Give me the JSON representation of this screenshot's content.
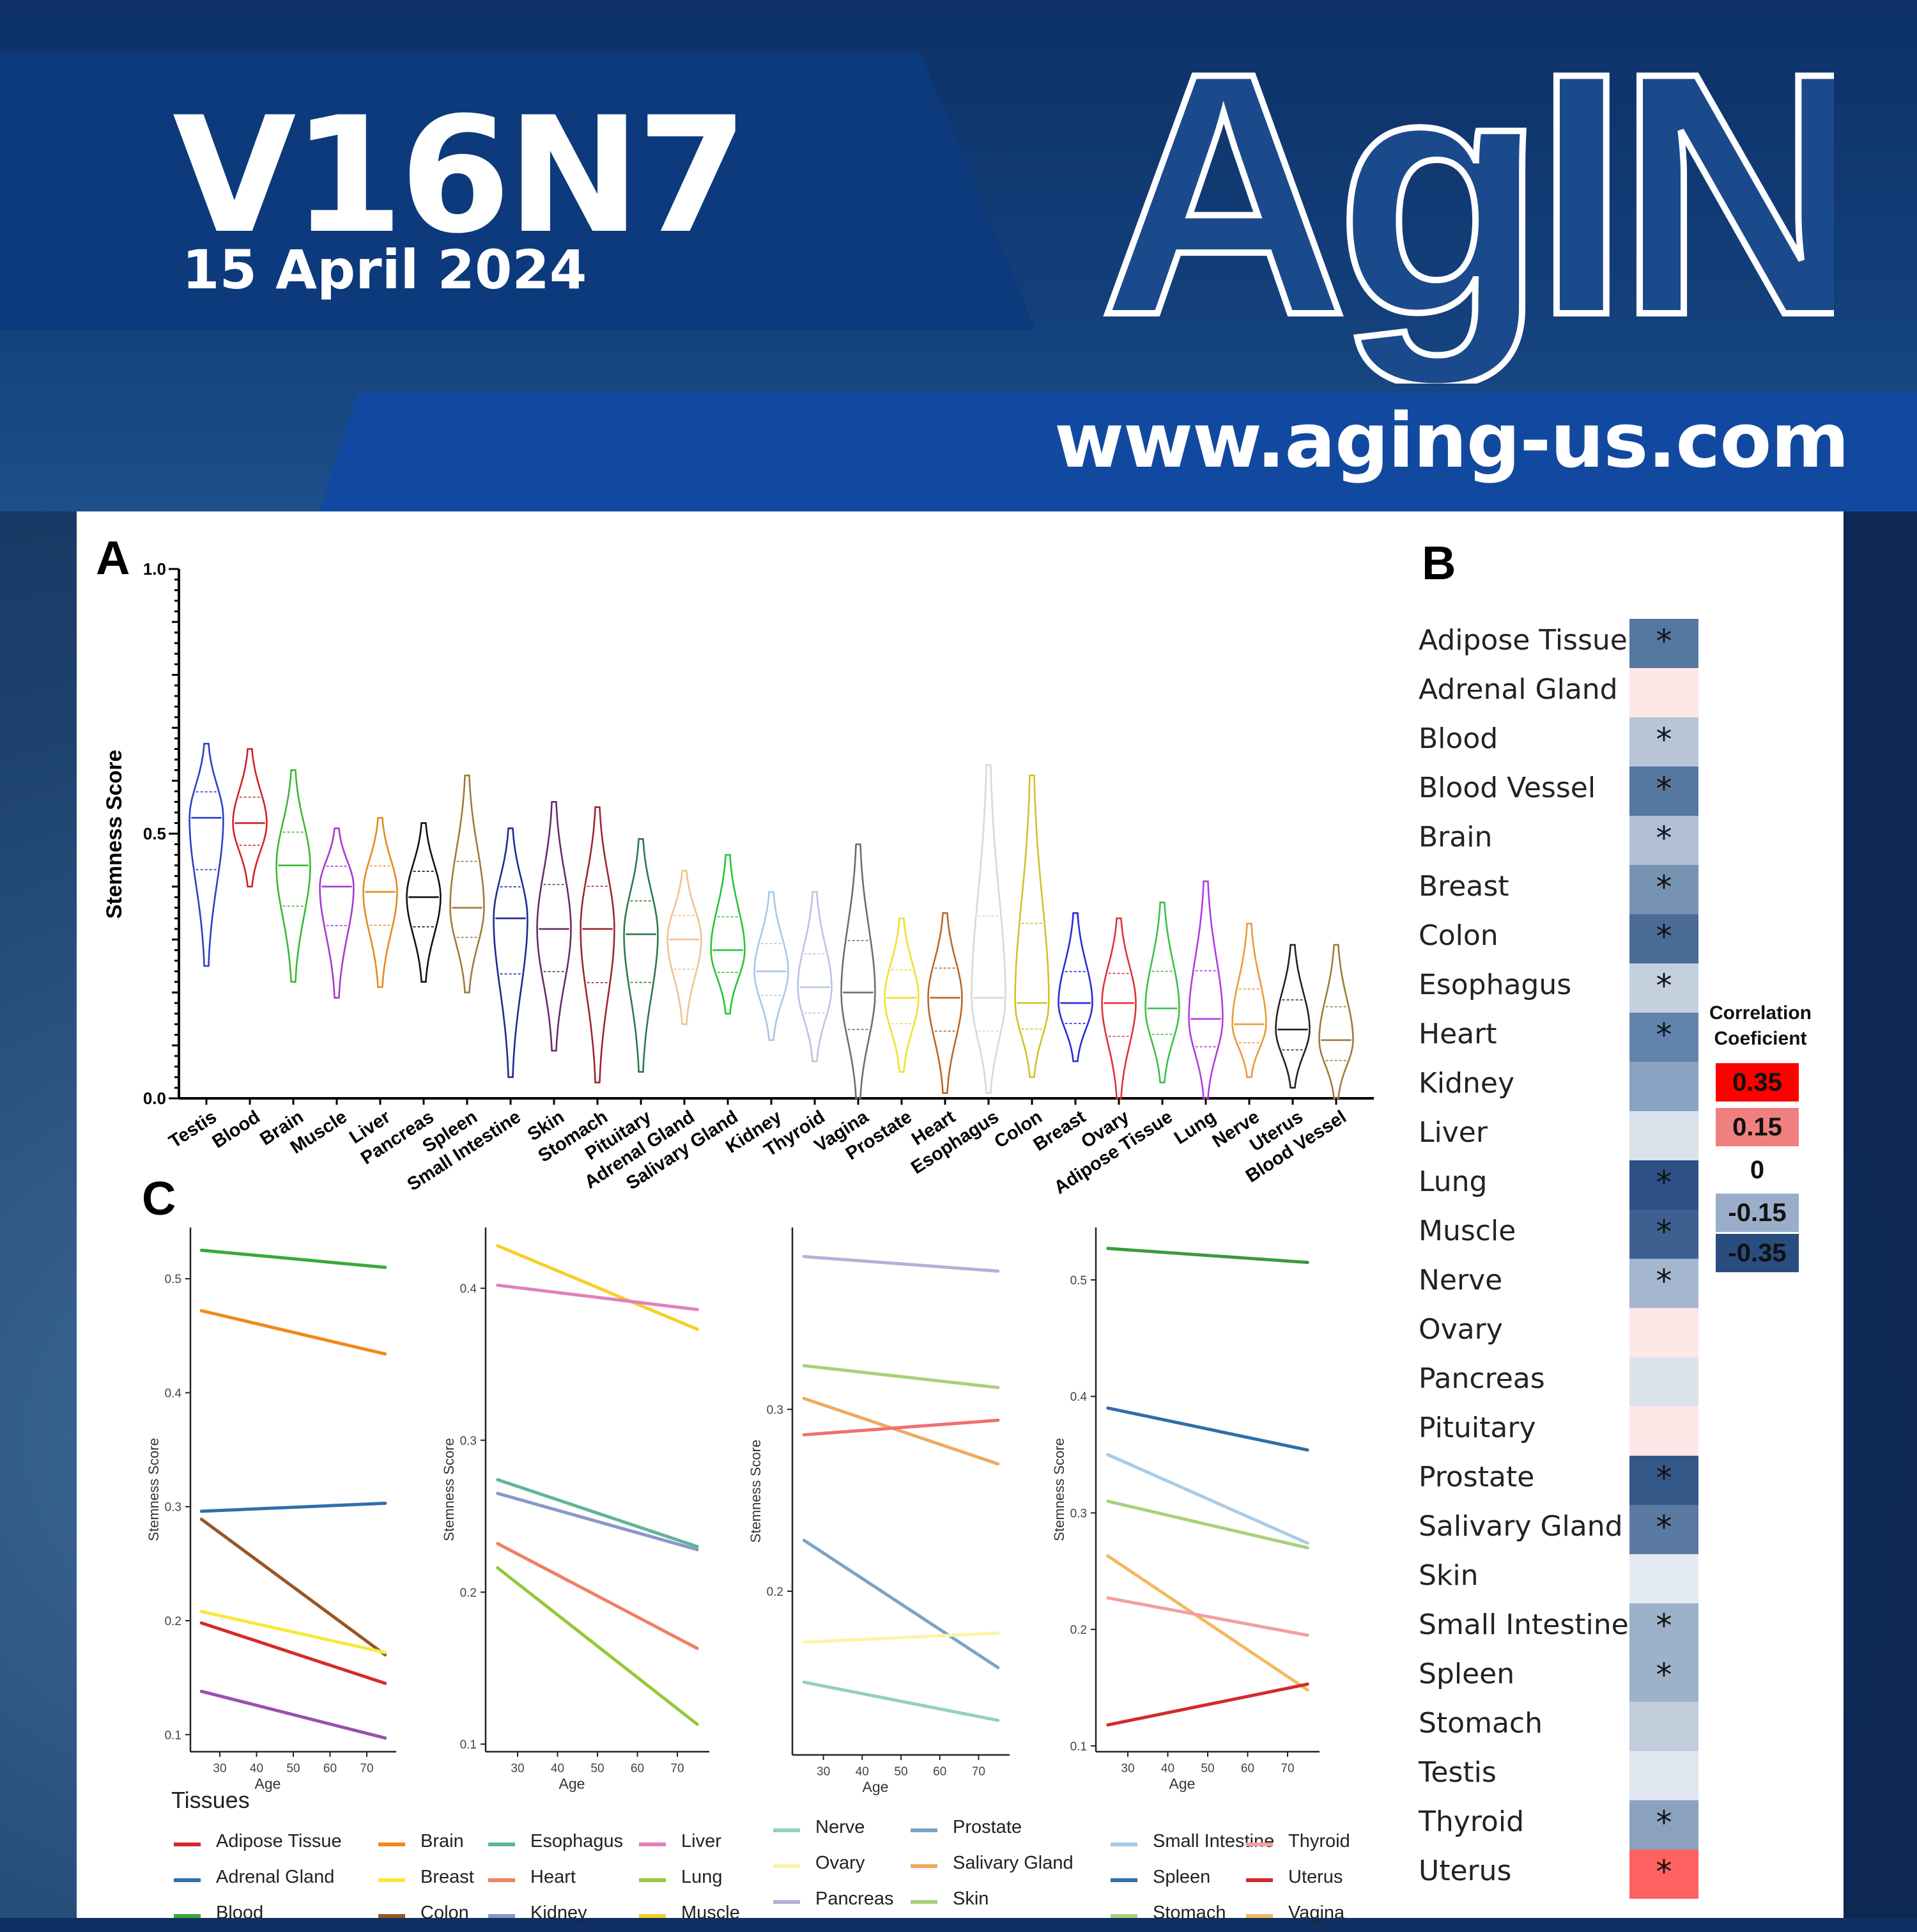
{
  "header": {
    "volume": "V16N7",
    "date": "15 April 2024",
    "logo": "AgING",
    "url": "www.aging-us.com"
  },
  "panels": {
    "a": "A",
    "b": "B",
    "c": "C"
  },
  "violin": {
    "ylabel": "Stemness Score",
    "yticks": [
      "1.0",
      "0.5",
      "0.0"
    ],
    "tissues": [
      "Testis",
      "Blood",
      "Brain",
      "Muscle",
      "Liver",
      "Pancreas",
      "Spleen",
      "Small Intestine",
      "Skin",
      "Stomach",
      "Pituitary",
      "Adrenal Gland",
      "Salivary Gland",
      "Kidney",
      "Thyroid",
      "Vagina",
      "Prostate",
      "Heart",
      "Esophagus",
      "Colon",
      "Breast",
      "Ovary",
      "Adipose Tissue",
      "Lung",
      "Nerve",
      "Uterus",
      "Blood Vessel"
    ],
    "colors": [
      "#2b3fc7",
      "#d42020",
      "#39b835",
      "#a43bd0",
      "#e68a1e",
      "#111111",
      "#a07a3c",
      "#1f2a8f",
      "#6a2a6a",
      "#9c2530",
      "#2a7a4a",
      "#f2c18f",
      "#27c43a",
      "#a7c7e7",
      "#b9c4e6",
      "#6e6e6e",
      "#f1e12e",
      "#b8692a",
      "#d8d8d8",
      "#d2c12a",
      "#2a2ad8",
      "#e0303a",
      "#3cbf4a",
      "#b23ae0",
      "#ea9a3a",
      "#222222",
      "#a07a3c"
    ],
    "medians": [
      0.53,
      0.52,
      0.44,
      0.4,
      0.39,
      0.38,
      0.36,
      0.34,
      0.32,
      0.32,
      0.31,
      0.3,
      0.28,
      0.24,
      0.21,
      0.2,
      0.19,
      0.19,
      0.19,
      0.18,
      0.18,
      0.18,
      0.17,
      0.15,
      0.14,
      0.13,
      0.11
    ],
    "mins": [
      0.25,
      0.4,
      0.22,
      0.19,
      0.21,
      0.22,
      0.2,
      0.04,
      0.09,
      0.03,
      0.05,
      0.14,
      0.16,
      0.11,
      0.07,
      0.0,
      0.05,
      0.01,
      0.01,
      0.04,
      0.07,
      0.0,
      0.03,
      0.0,
      0.04,
      0.02,
      0.0
    ],
    "maxs": [
      0.67,
      0.66,
      0.62,
      0.51,
      0.53,
      0.52,
      0.61,
      0.51,
      0.56,
      0.55,
      0.49,
      0.43,
      0.46,
      0.39,
      0.39,
      0.48,
      0.34,
      0.35,
      0.63,
      0.61,
      0.35,
      0.34,
      0.37,
      0.41,
      0.33,
      0.29,
      0.29
    ]
  },
  "correlation": {
    "title": "Correlation Coeficient",
    "scale": [
      "0.35",
      "0.15",
      "0",
      "-0.15",
      "-0.35"
    ],
    "scale_colors": [
      "#ff0000",
      "#f08080",
      "#ffffff",
      "#9aaeca",
      "#2a4d80"
    ],
    "rows": [
      {
        "label": "Adipose Tissue",
        "color": "#56779f",
        "star": "*"
      },
      {
        "label": "Adrenal Gland",
        "color": "#fde7e7",
        "star": ""
      },
      {
        "label": "Blood",
        "color": "#b7c5d7",
        "star": "*"
      },
      {
        "label": "Blood Vessel",
        "color": "#5677a0",
        "star": "*"
      },
      {
        "label": "Brain",
        "color": "#b0bfd3",
        "star": "*"
      },
      {
        "label": "Breast",
        "color": "#7892b4",
        "star": "*"
      },
      {
        "label": "Colon",
        "color": "#4a6c97",
        "star": "*"
      },
      {
        "label": "Esophagus",
        "color": "#c4d0de",
        "star": "*"
      },
      {
        "label": "Heart",
        "color": "#6283ab",
        "star": "*"
      },
      {
        "label": "Kidney",
        "color": "#8ba3c2",
        "star": ""
      },
      {
        "label": "Liver",
        "color": "#d9e1ea",
        "star": ""
      },
      {
        "label": "Lung",
        "color": "#2d5184",
        "star": "*"
      },
      {
        "label": "Muscle",
        "color": "#3d6090",
        "star": "*"
      },
      {
        "label": "Nerve",
        "color": "#a5b7cf",
        "star": "*"
      },
      {
        "label": "Ovary",
        "color": "#fde7e7",
        "star": ""
      },
      {
        "label": "Pancreas",
        "color": "#dbe3ec",
        "star": ""
      },
      {
        "label": "Pituitary",
        "color": "#fde8e8",
        "star": ""
      },
      {
        "label": "Prostate",
        "color": "#335888",
        "star": "*"
      },
      {
        "label": "Salivary Gland",
        "color": "#5a7aa2",
        "star": "*"
      },
      {
        "label": "Skin",
        "color": "#e4eaf1",
        "star": ""
      },
      {
        "label": "Small Intestine",
        "color": "#9cb0ca",
        "star": "*"
      },
      {
        "label": "Spleen",
        "color": "#9eb1cb",
        "star": "*"
      },
      {
        "label": "Stomach",
        "color": "#c1cddb",
        "star": ""
      },
      {
        "label": "Testis",
        "color": "#dfe6ee",
        "star": ""
      },
      {
        "label": "Thyroid",
        "color": "#8aa1c0",
        "star": "*"
      },
      {
        "label": "Uterus",
        "color": "#ff6060",
        "star": "*"
      }
    ]
  },
  "trend_charts": {
    "xlabel": "Age",
    "ylabel": "Stemness Score",
    "xticks": [
      "30",
      "40",
      "50",
      "60",
      "70"
    ],
    "charts": [
      {
        "yticks": [
          "0.5",
          "0.4",
          "0.3",
          "0.2",
          "0.1"
        ],
        "ylim": [
          0.085,
          0.545
        ],
        "lines": [
          [
            "Blood",
            0.525,
            0.51,
            "#3aa83a"
          ],
          [
            "Brain",
            0.472,
            0.434,
            "#ee8a1a"
          ],
          [
            "Adrenal Gland",
            0.296,
            0.303,
            "#2f6ea8"
          ],
          [
            "Colon",
            0.289,
            0.17,
            "#995522"
          ],
          [
            "Breast",
            0.208,
            0.172,
            "#f5ea3a"
          ],
          [
            "Adipose Tissue",
            0.198,
            0.145,
            "#d62a2a"
          ],
          [
            "Blood Vessel",
            0.138,
            0.097,
            "#9a4fb0"
          ]
        ]
      },
      {
        "yticks": [
          "0.4",
          "0.3",
          "0.2",
          "0.1"
        ],
        "ylim": [
          0.095,
          0.44
        ],
        "lines": [
          [
            "Muscle",
            0.428,
            0.373,
            "#f5cf2a"
          ],
          [
            "Liver",
            0.402,
            0.386,
            "#e27fbd"
          ],
          [
            "Esophagus",
            0.274,
            0.23,
            "#5fb49a"
          ],
          [
            "Kidney",
            0.265,
            0.228,
            "#8898c8"
          ],
          [
            "Heart",
            0.232,
            0.163,
            "#ef8062"
          ],
          [
            "Lung",
            0.216,
            0.113,
            "#96c83a"
          ]
        ]
      },
      {
        "yticks": [
          "0.3",
          "0.2"
        ],
        "ylim": [
          0.11,
          0.4
        ],
        "lines": [
          [
            "Pancreas",
            0.384,
            0.376,
            "#b6b0d8"
          ],
          [
            "Skin",
            0.324,
            0.312,
            "#a8d07a"
          ],
          [
            "Salivary Gland",
            0.306,
            0.27,
            "#f0a860"
          ],
          [
            "Pituitary",
            0.286,
            0.294,
            "#ee7070"
          ],
          [
            "Prostate",
            0.228,
            0.158,
            "#7aa4c8"
          ],
          [
            "Ovary",
            0.172,
            0.177,
            "#fbf3a8"
          ],
          [
            "Nerve",
            0.15,
            0.129,
            "#92cfc0"
          ]
        ]
      },
      {
        "yticks": [
          "0.5",
          "0.4",
          "0.3",
          "0.2",
          "0.1"
        ],
        "ylim": [
          0.095,
          0.545
        ],
        "lines": [
          [
            "Stomach",
            0.527,
            0.515,
            "#3a9a3a"
          ],
          [
            "Spleen",
            0.39,
            0.354,
            "#2f6ea8"
          ],
          [
            "Small Intestine",
            0.35,
            0.274,
            "#a8cce6"
          ],
          [
            "Stomach",
            0.31,
            0.27,
            "#a8d07a"
          ],
          [
            "Vagina",
            0.263,
            0.148,
            "#f5b860"
          ],
          [
            "Thyroid",
            0.227,
            0.195,
            "#f2a0a0"
          ],
          [
            "Uterus",
            0.118,
            0.153,
            "#d42a2a"
          ]
        ]
      }
    ]
  },
  "legend": {
    "title": "Tissues",
    "items": [
      {
        "label": "Adipose Tissue",
        "color": "#d62a2a"
      },
      {
        "label": "Adrenal Gland",
        "color": "#2f6ea8"
      },
      {
        "label": "Blood",
        "color": "#3aa83a"
      },
      {
        "label": "Brain",
        "color": "#ee8a1a"
      },
      {
        "label": "Breast",
        "color": "#f5ea3a"
      },
      {
        "label": "Colon",
        "color": "#995522"
      },
      {
        "label": "Esophagus",
        "color": "#5fb49a"
      },
      {
        "label": "Heart",
        "color": "#ef8062"
      },
      {
        "label": "Kidney",
        "color": "#8898c8"
      },
      {
        "label": "Liver",
        "color": "#e27fbd"
      },
      {
        "label": "Lung",
        "color": "#96c83a"
      },
      {
        "label": "Muscle",
        "color": "#f5cf2a"
      },
      {
        "label": "Nerve",
        "color": "#92cfc0"
      },
      {
        "label": "Ovary",
        "color": "#fbf3a8"
      },
      {
        "label": "Pancreas",
        "color": "#b6b0d8"
      },
      {
        "label": "Prostate",
        "color": "#7aa4c8"
      },
      {
        "label": "Salivary Gland",
        "color": "#f0a860"
      },
      {
        "label": "Skin",
        "color": "#a8d07a"
      },
      {
        "label": "Small Intestine",
        "color": "#a8cce6"
      },
      {
        "label": "Spleen",
        "color": "#2f6ea8"
      },
      {
        "label": "Stomach",
        "color": "#a8d07a"
      },
      {
        "label": "Thyroid",
        "color": "#f2a0a0"
      },
      {
        "label": "Uterus",
        "color": "#d42a2a"
      },
      {
        "label": "Vagina",
        "color": "#f5b860"
      }
    ]
  }
}
